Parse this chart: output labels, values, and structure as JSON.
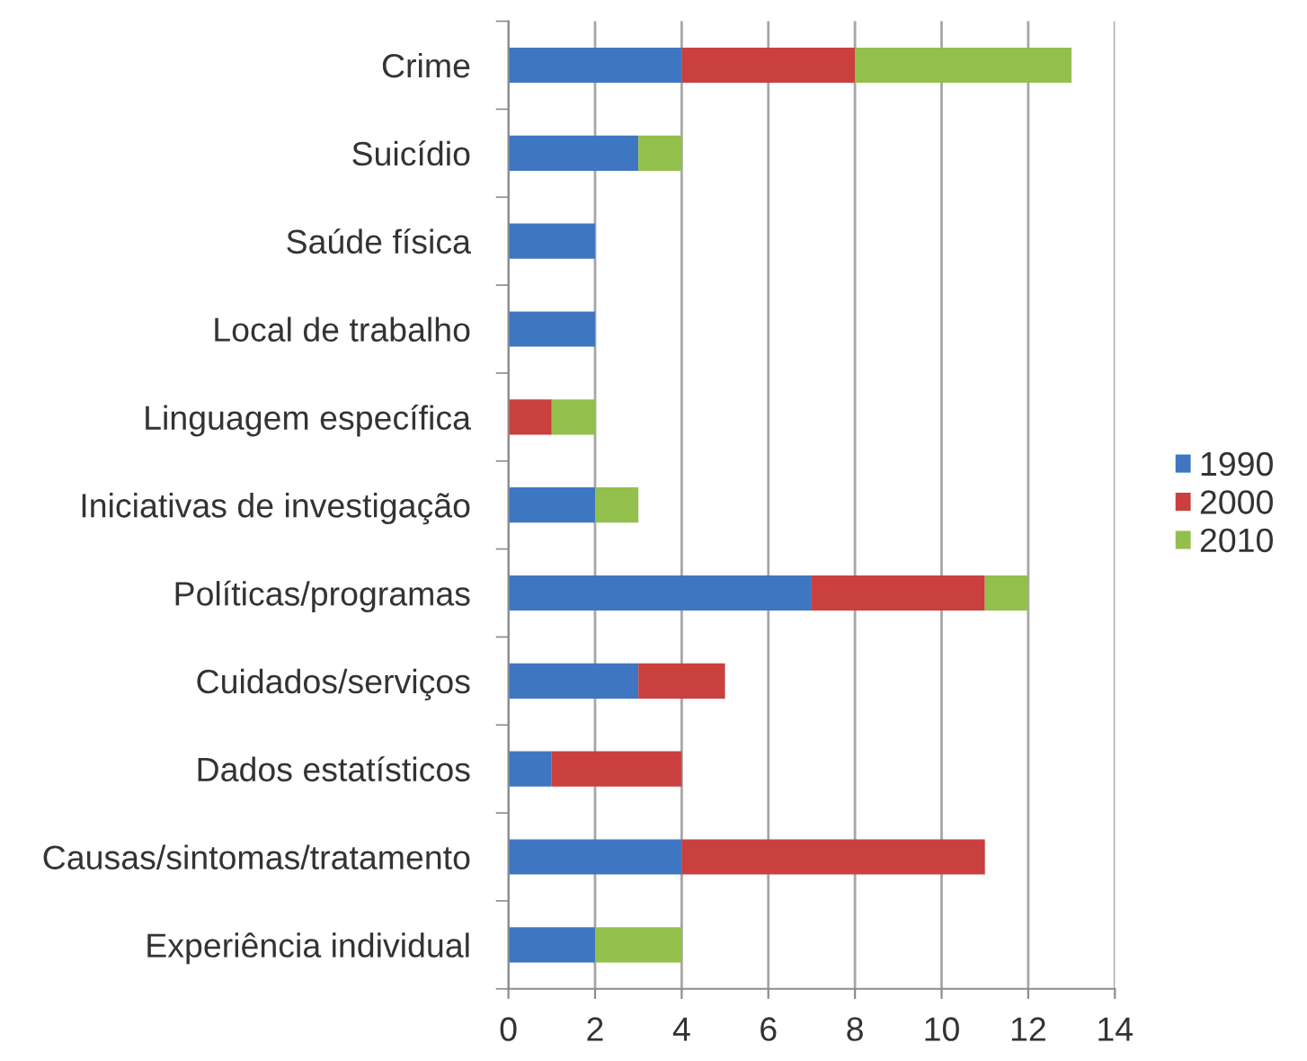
{
  "chart_data": {
    "type": "bar",
    "orientation": "horizontal",
    "stacked": true,
    "categories": [
      "Crime",
      "Suicídio",
      "Saúde física",
      "Local de trabalho",
      "Linguagem específica",
      "Iniciativas de investigação",
      "Políticas/programas",
      "Cuidados/serviços",
      "Dados estatísticos",
      "Causas/sintomas/tratamento",
      "Experiência individual"
    ],
    "series": [
      {
        "name": "1990",
        "color": "#3f76c2",
        "values": [
          4,
          3,
          2,
          2,
          null,
          2,
          7,
          3,
          1,
          4,
          2
        ]
      },
      {
        "name": "2000",
        "color": "#c9403f",
        "values": [
          4,
          null,
          null,
          null,
          1,
          null,
          4,
          2,
          3,
          7,
          null
        ]
      },
      {
        "name": "2010",
        "color": "#93bf4c",
        "values": [
          5,
          1,
          null,
          null,
          1,
          1,
          1,
          null,
          null,
          null,
          2
        ]
      }
    ],
    "xlim": [
      0,
      14
    ],
    "xticks": [
      0,
      2,
      4,
      6,
      8,
      10,
      12,
      14
    ],
    "grid": "x",
    "legend": "right"
  }
}
